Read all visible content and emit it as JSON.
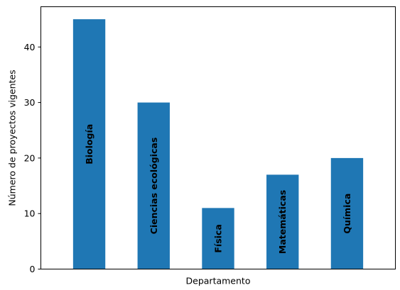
{
  "chart_data": {
    "type": "bar",
    "categories": [
      "Biología",
      "Ciencias ecológicas",
      "Física",
      "Matemáticas",
      "Química"
    ],
    "values": [
      45,
      30,
      11,
      17,
      20
    ],
    "title": "",
    "xlabel": "Departamento",
    "ylabel": "Número de proyectos vigentes",
    "ylim": [
      0,
      47.25
    ],
    "yticks": [
      0,
      10,
      20,
      30,
      40
    ],
    "bar_color": "#1f77b4",
    "grid": false,
    "legend": "none",
    "bar_labels": "category names inside bars, rotated vertical, bold"
  }
}
